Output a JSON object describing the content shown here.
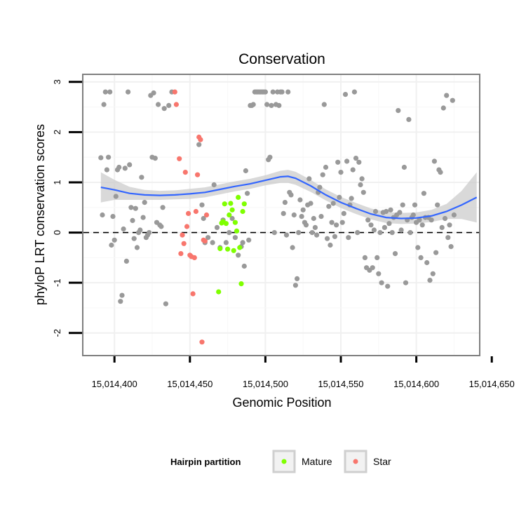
{
  "chart_data": {
    "type": "scatter",
    "title": "Conservation",
    "xlabel": "Genomic Position",
    "ylabel": "phyloP LRT conservation scores",
    "xlim": [
      15014379,
      15014642
    ],
    "ylim": [
      -2.45,
      3.15
    ],
    "x_ticks": [
      15014400,
      15014450,
      15014500,
      15014550,
      15014600,
      15014650
    ],
    "x_tick_labels": [
      "15,014,400",
      "15,014,450",
      "15,014,500",
      "15,014,550",
      "15,014,600",
      "15,014,650"
    ],
    "y_ticks": [
      -2,
      -1,
      0,
      1,
      2,
      3
    ],
    "y_tick_labels": [
      "-2",
      "-1",
      "0",
      "1",
      "2",
      "3"
    ],
    "grid": true,
    "reference_line": {
      "y": 0,
      "style": "dashed"
    },
    "colors": {
      "other": "#999999",
      "Mature": "#7fff00",
      "Star": "#f8766d",
      "smooth": "#3366ff",
      "band": "#cccccc"
    },
    "legend": {
      "title": "Hairpin partition",
      "position": "bottom",
      "entries": [
        {
          "label": "Mature",
          "color": "#7fff00"
        },
        {
          "label": "Star",
          "color": "#f8766d"
        }
      ]
    },
    "series": [
      {
        "group": "other",
        "color": "#999999",
        "points": [
          [
            15014391,
            1.49
          ],
          [
            15014392,
            0.35
          ],
          [
            15014393,
            2.55
          ],
          [
            15014394,
            2.8
          ],
          [
            15014395,
            1.25
          ],
          [
            15014396,
            1.5
          ],
          [
            15014397,
            2.8
          ],
          [
            15014398,
            -0.25
          ],
          [
            15014399,
            0.32
          ],
          [
            15014400,
            -0.15
          ],
          [
            15014401,
            0.72
          ],
          [
            15014402,
            1.25
          ],
          [
            15014403,
            1.3
          ],
          [
            15014404,
            -1.37
          ],
          [
            15014405,
            -1.25
          ],
          [
            15014406,
            0.07
          ],
          [
            15014407,
            1.28
          ],
          [
            15014408,
            -0.57
          ],
          [
            15014409,
            2.8
          ],
          [
            15014410,
            1.35
          ],
          [
            15014411,
            0.5
          ],
          [
            15014412,
            0.24
          ],
          [
            15014413,
            -0.12
          ],
          [
            15014414,
            0.48
          ],
          [
            15014415,
            -0.3
          ],
          [
            15014416,
            0.0
          ],
          [
            15014417,
            0.05
          ],
          [
            15014418,
            1.1
          ],
          [
            15014419,
            0.3
          ],
          [
            15014420,
            0.6
          ],
          [
            15014421,
            -0.1
          ],
          [
            15014422,
            -0.05
          ],
          [
            15014423,
            0.0
          ],
          [
            15014424,
            2.73
          ],
          [
            15014425,
            1.5
          ],
          [
            15014426,
            2.78
          ],
          [
            15014427,
            1.48
          ],
          [
            15014428,
            0.2
          ],
          [
            15014429,
            2.55
          ],
          [
            15014430,
            0.15
          ],
          [
            15014431,
            0.12
          ],
          [
            15014432,
            0.5
          ],
          [
            15014433,
            2.47
          ],
          [
            15014434,
            -1.42
          ],
          [
            15014436,
            2.53
          ],
          [
            15014438,
            2.8
          ],
          [
            15014456,
            1.75
          ],
          [
            15014458,
            0.55
          ],
          [
            15014459,
            0.28
          ],
          [
            15014460,
            -0.2
          ],
          [
            15014462,
            -0.1
          ],
          [
            15014465,
            -0.2
          ],
          [
            15014466,
            0.95
          ],
          [
            15014468,
            0.1
          ],
          [
            15014470,
            -0.3
          ],
          [
            15014472,
            0.25
          ],
          [
            15014474,
            -0.2
          ],
          [
            15014476,
            0.0
          ],
          [
            15014478,
            0.28
          ],
          [
            15014480,
            -0.1
          ],
          [
            15014482,
            -0.45
          ],
          [
            15014484,
            -0.28
          ],
          [
            15014485,
            -0.2
          ],
          [
            15014486,
            -0.67
          ],
          [
            15014487,
            1.23
          ],
          [
            15014488,
            0.78
          ],
          [
            15014489,
            -0.15
          ],
          [
            15014490,
            2.53
          ],
          [
            15014491,
            2.53
          ],
          [
            15014492,
            2.55
          ],
          [
            15014493,
            2.8
          ],
          [
            15014494,
            2.8
          ],
          [
            15014495,
            2.8
          ],
          [
            15014496,
            2.8
          ],
          [
            15014497,
            2.8
          ],
          [
            15014498,
            2.8
          ],
          [
            15014499,
            2.8
          ],
          [
            15014500,
            2.8
          ],
          [
            15014501,
            2.55
          ],
          [
            15014502,
            1.45
          ],
          [
            15014503,
            1.5
          ],
          [
            15014504,
            2.53
          ],
          [
            15014505,
            2.8
          ],
          [
            15014506,
            0.0
          ],
          [
            15014507,
            2.55
          ],
          [
            15014508,
            2.8
          ],
          [
            15014509,
            2.53
          ],
          [
            15014510,
            2.8
          ],
          [
            15014511,
            2.8
          ],
          [
            15014512,
            0.38
          ],
          [
            15014513,
            0.6
          ],
          [
            15014514,
            -0.05
          ],
          [
            15014515,
            2.8
          ],
          [
            15014516,
            0.8
          ],
          [
            15014517,
            0.75
          ],
          [
            15014518,
            -0.3
          ],
          [
            15014519,
            0.35
          ],
          [
            15014520,
            -1.05
          ],
          [
            15014521,
            -0.92
          ],
          [
            15014522,
            0.0
          ],
          [
            15014523,
            0.65
          ],
          [
            15014524,
            0.32
          ],
          [
            15014525,
            0.45
          ],
          [
            15014526,
            0.2
          ],
          [
            15014527,
            0.15
          ],
          [
            15014528,
            0.55
          ],
          [
            15014529,
            1.07
          ],
          [
            15014530,
            0.58
          ],
          [
            15014531,
            0.0
          ],
          [
            15014532,
            0.28
          ],
          [
            15014533,
            0.1
          ],
          [
            15014534,
            -0.05
          ],
          [
            15014535,
            0.8
          ],
          [
            15014536,
            0.9
          ],
          [
            15014537,
            0.32
          ],
          [
            15014538,
            1.15
          ],
          [
            15014539,
            2.55
          ],
          [
            15014540,
            1.3
          ],
          [
            15014541,
            -0.12
          ],
          [
            15014542,
            0.52
          ],
          [
            15014543,
            -0.25
          ],
          [
            15014544,
            0.2
          ],
          [
            15014545,
            0.58
          ],
          [
            15014546,
            -0.08
          ],
          [
            15014547,
            0.15
          ],
          [
            15014548,
            1.4
          ],
          [
            15014549,
            0.7
          ],
          [
            15014550,
            1.2
          ],
          [
            15014551,
            0.2
          ],
          [
            15014552,
            0.38
          ],
          [
            15014553,
            2.75
          ],
          [
            15014554,
            1.42
          ],
          [
            15014555,
            -0.1
          ],
          [
            15014556,
            0.55
          ],
          [
            15014557,
            0.68
          ],
          [
            15014558,
            1.25
          ],
          [
            15014559,
            2.8
          ],
          [
            15014560,
            1.48
          ],
          [
            15014561,
            0.0
          ],
          [
            15014562,
            1.4
          ],
          [
            15014563,
            0.95
          ],
          [
            15014564,
            1.07
          ],
          [
            15014565,
            0.8
          ],
          [
            15014566,
            -0.5
          ],
          [
            15014567,
            -0.7
          ],
          [
            15014568,
            0.25
          ],
          [
            15014569,
            -0.75
          ],
          [
            15014570,
            0.15
          ],
          [
            15014571,
            -0.7
          ],
          [
            15014572,
            0.05
          ],
          [
            15014573,
            0.42
          ],
          [
            15014574,
            -0.5
          ],
          [
            15014575,
            -0.82
          ],
          [
            15014576,
            0.0
          ],
          [
            15014577,
            -1.0
          ],
          [
            15014578,
            0.4
          ],
          [
            15014579,
            0.1
          ],
          [
            15014580,
            0.42
          ],
          [
            15014581,
            -1.07
          ],
          [
            15014582,
            0.18
          ],
          [
            15014583,
            0.45
          ],
          [
            15014584,
            0.0
          ],
          [
            15014585,
            0.3
          ],
          [
            15014586,
            -0.42
          ],
          [
            15014587,
            0.35
          ],
          [
            15014588,
            2.43
          ],
          [
            15014589,
            0.4
          ],
          [
            15014590,
            0.05
          ],
          [
            15014591,
            0.55
          ],
          [
            15014592,
            1.3
          ],
          [
            15014593,
            -1.0
          ],
          [
            15014594,
            0.25
          ],
          [
            15014595,
            2.25
          ],
          [
            15014596,
            0.0
          ],
          [
            15014597,
            0.3
          ],
          [
            15014598,
            0.35
          ],
          [
            15014599,
            0.55
          ],
          [
            15014600,
            0.2
          ],
          [
            15014601,
            -0.3
          ],
          [
            15014602,
            0.25
          ],
          [
            15014603,
            -0.5
          ],
          [
            15014604,
            0.15
          ],
          [
            15014605,
            0.78
          ],
          [
            15014606,
            0.3
          ],
          [
            15014607,
            -0.6
          ],
          [
            15014608,
            0.3
          ],
          [
            15014609,
            -0.95
          ],
          [
            15014610,
            0.25
          ],
          [
            15014611,
            -0.82
          ],
          [
            15014612,
            1.42
          ],
          [
            15014613,
            -0.4
          ],
          [
            15014614,
            0.55
          ],
          [
            15014615,
            1.25
          ],
          [
            15014616,
            1.2
          ],
          [
            15014617,
            0.1
          ],
          [
            15014618,
            2.48
          ],
          [
            15014619,
            0.28
          ],
          [
            15014620,
            2.73
          ],
          [
            15014621,
            -0.1
          ],
          [
            15014622,
            0.15
          ],
          [
            15014623,
            -0.28
          ],
          [
            15014624,
            2.63
          ],
          [
            15014625,
            0.35
          ]
        ]
      },
      {
        "group": "Mature",
        "color": "#7fff00",
        "points": [
          [
            15014469,
            -1.18
          ],
          [
            15014470,
            -0.32
          ],
          [
            15014471,
            0.19
          ],
          [
            15014472,
            0.22
          ],
          [
            15014473,
            0.57
          ],
          [
            15014474,
            0.18
          ],
          [
            15014475,
            -0.33
          ],
          [
            15014476,
            0.35
          ],
          [
            15014477,
            0.58
          ],
          [
            15014478,
            0.45
          ],
          [
            15014479,
            -0.36
          ],
          [
            15014480,
            0.2
          ],
          [
            15014481,
            0.03
          ],
          [
            15014482,
            0.7
          ],
          [
            15014483,
            -0.3
          ],
          [
            15014484,
            -1.02
          ],
          [
            15014485,
            0.42
          ],
          [
            15014486,
            0.57
          ]
        ]
      },
      {
        "group": "Star",
        "color": "#f8766d",
        "points": [
          [
            15014440,
            2.8
          ],
          [
            15014441,
            2.55
          ],
          [
            15014443,
            1.47
          ],
          [
            15014444,
            -0.42
          ],
          [
            15014445,
            -0.05
          ],
          [
            15014446,
            -0.22
          ],
          [
            15014447,
            1.2
          ],
          [
            15014448,
            0.12
          ],
          [
            15014449,
            0.38
          ],
          [
            15014450,
            -0.45
          ],
          [
            15014451,
            -0.48
          ],
          [
            15014452,
            -1.22
          ],
          [
            15014453,
            -0.5
          ],
          [
            15014454,
            0.42
          ],
          [
            15014455,
            1.15
          ],
          [
            15014456,
            1.9
          ],
          [
            15014457,
            1.85
          ],
          [
            15014458,
            -2.18
          ],
          [
            15014459,
            -0.15
          ],
          [
            15014460,
            -0.17
          ],
          [
            15014461,
            0.35
          ]
        ]
      }
    ],
    "smooth": {
      "x": [
        15014391,
        15014400,
        15014410,
        15014420,
        15014430,
        15014440,
        15014450,
        15014460,
        15014470,
        15014480,
        15014490,
        15014500,
        15014510,
        15014515,
        15014520,
        15014530,
        15014540,
        15014550,
        15014560,
        15014570,
        15014580,
        15014590,
        15014600,
        15014610,
        15014620,
        15014630,
        15014640
      ],
      "y": [
        0.9,
        0.85,
        0.78,
        0.75,
        0.74,
        0.75,
        0.77,
        0.8,
        0.86,
        0.92,
        0.97,
        1.04,
        1.11,
        1.12,
        1.08,
        0.93,
        0.75,
        0.6,
        0.48,
        0.37,
        0.3,
        0.28,
        0.29,
        0.33,
        0.42,
        0.55,
        0.7
      ],
      "band": [
        0.3,
        0.2,
        0.13,
        0.1,
        0.09,
        0.09,
        0.1,
        0.1,
        0.1,
        0.1,
        0.1,
        0.1,
        0.12,
        0.13,
        0.13,
        0.12,
        0.11,
        0.11,
        0.11,
        0.11,
        0.11,
        0.11,
        0.11,
        0.12,
        0.15,
        0.28,
        0.5
      ]
    }
  }
}
